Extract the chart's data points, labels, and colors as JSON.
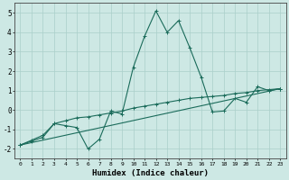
{
  "xlabel": "Humidex (Indice chaleur)",
  "bg_color": "#cde8e4",
  "grid_color": "#aacfca",
  "line_color": "#1a6b5a",
  "xlim": [
    -0.5,
    23.5
  ],
  "ylim": [
    -2.5,
    5.5
  ],
  "xticks": [
    0,
    1,
    2,
    3,
    4,
    5,
    6,
    7,
    8,
    9,
    10,
    11,
    12,
    13,
    14,
    15,
    16,
    17,
    18,
    19,
    20,
    21,
    22,
    23
  ],
  "yticks": [
    -2,
    -1,
    0,
    1,
    2,
    3,
    4,
    5
  ],
  "series1": [
    [
      0,
      -1.8
    ],
    [
      1,
      -1.6
    ],
    [
      2,
      -1.4
    ],
    [
      3,
      -0.7
    ],
    [
      4,
      -0.8
    ],
    [
      5,
      -0.9
    ],
    [
      6,
      -2.0
    ],
    [
      7,
      -1.5
    ],
    [
      8,
      -0.05
    ],
    [
      9,
      -0.2
    ],
    [
      10,
      2.2
    ],
    [
      11,
      3.8
    ],
    [
      12,
      5.1
    ],
    [
      13,
      4.0
    ],
    [
      14,
      4.6
    ],
    [
      15,
      3.2
    ],
    [
      16,
      1.7
    ],
    [
      17,
      -0.1
    ],
    [
      18,
      -0.05
    ],
    [
      19,
      0.6
    ],
    [
      20,
      0.4
    ],
    [
      21,
      1.2
    ],
    [
      22,
      1.0
    ],
    [
      23,
      1.1
    ]
  ],
  "series2": [
    [
      0,
      -1.8
    ],
    [
      1,
      -1.55
    ],
    [
      2,
      -1.3
    ],
    [
      3,
      -0.7
    ],
    [
      4,
      -0.55
    ],
    [
      5,
      -0.4
    ],
    [
      6,
      -0.35
    ],
    [
      7,
      -0.25
    ],
    [
      8,
      -0.15
    ],
    [
      9,
      -0.05
    ],
    [
      10,
      0.1
    ],
    [
      11,
      0.2
    ],
    [
      12,
      0.3
    ],
    [
      13,
      0.4
    ],
    [
      14,
      0.5
    ],
    [
      15,
      0.6
    ],
    [
      16,
      0.65
    ],
    [
      17,
      0.7
    ],
    [
      18,
      0.75
    ],
    [
      19,
      0.85
    ],
    [
      20,
      0.9
    ],
    [
      21,
      1.0
    ],
    [
      22,
      1.05
    ],
    [
      23,
      1.1
    ]
  ],
  "series3": [
    [
      0,
      -1.8
    ],
    [
      23,
      1.1
    ]
  ]
}
